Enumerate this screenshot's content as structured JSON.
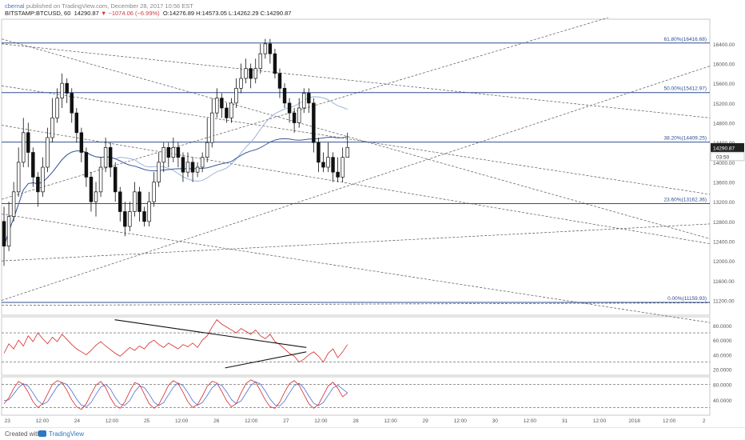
{
  "header": {
    "author": "cbernal",
    "published": "published on TradingView.com, December 28, 2017 10:56 EST",
    "symbol": "BITSTAMP:BTCUSD, 60",
    "price": "14290.87",
    "change": "▼ −1074.06 (−6.99%)",
    "ohlc": "O:14276.89 H:14573.05 L:14262.29 C:14290.87"
  },
  "footer": {
    "created": "Created with",
    "brand": "TradingView"
  },
  "chart_data": {
    "type": "candlestick",
    "y_axis_price": {
      "ticks": [
        11200,
        11600,
        12000,
        12400,
        12800,
        13200,
        13600,
        14000,
        14400,
        14800,
        15200,
        15600,
        16000,
        16400
      ],
      "labels": [
        "11200.00",
        "11600.00",
        "12000.00",
        "12400.00",
        "12800.00",
        "13200.00",
        "13600.00",
        "14000.00",
        "14400.00",
        "14800.00",
        "15200.00",
        "15600.00",
        "16000.00",
        "16400.00"
      ],
      "range": [
        10900,
        16900
      ]
    },
    "last_price_label": "14290.87",
    "countdown_label": "03:50",
    "x_axis": {
      "labels": [
        "23",
        "12:00",
        "24",
        "12:00",
        "25",
        "12:00",
        "26",
        "12:00",
        "27",
        "12:00",
        "28",
        "12:00",
        "29",
        "12:00",
        "30",
        "12:00",
        "31",
        "12:00",
        "2018",
        "12:00",
        "2"
      ],
      "range_hours": [
        -2,
        242
      ]
    },
    "fibonacci": [
      {
        "level": "61.80%",
        "price": 16416.68,
        "label": "61.80%(16416.68)"
      },
      {
        "level": "50.00%",
        "price": 15412.97,
        "label": "50.00%(15412.97)"
      },
      {
        "level": "38.20%",
        "price": 14409.25,
        "label": "38.20%(14409.25)"
      },
      {
        "level": "23.60%",
        "price": 13162.36,
        "label": "23.60%(13162.36)"
      },
      {
        "level": "0.00%",
        "price": 11159.93,
        "label": "0.00%(11159.93)"
      }
    ],
    "candles": [
      [
        12800,
        12300,
        13100,
        11900
      ],
      [
        12300,
        12900,
        13200,
        12200
      ],
      [
        12900,
        13400,
        13600,
        12800
      ],
      [
        13400,
        14000,
        14300,
        13300
      ],
      [
        14000,
        14600,
        14900,
        13900
      ],
      [
        14600,
        14200,
        14800,
        13900
      ],
      [
        14200,
        13700,
        14300,
        13500
      ],
      [
        13700,
        13400,
        13800,
        13100
      ],
      [
        13400,
        13900,
        14100,
        13300
      ],
      [
        13900,
        14500,
        14700,
        13800
      ],
      [
        14500,
        14900,
        15300,
        14400
      ],
      [
        14900,
        15300,
        15500,
        14800
      ],
      [
        15300,
        15600,
        15800,
        15100
      ],
      [
        15600,
        15400,
        15700,
        15200
      ],
      [
        15400,
        15000,
        15500,
        14800
      ],
      [
        15000,
        14600,
        15100,
        14400
      ],
      [
        14600,
        14200,
        14700,
        14000
      ],
      [
        14200,
        13700,
        14300,
        13500
      ],
      [
        13700,
        13200,
        13800,
        13000
      ],
      [
        13200,
        13400,
        13600,
        12900
      ],
      [
        13400,
        13900,
        14100,
        13300
      ],
      [
        13900,
        14300,
        14500,
        13800
      ],
      [
        14300,
        13900,
        14400,
        13700
      ],
      [
        13900,
        13400,
        14000,
        13200
      ],
      [
        13400,
        13000,
        13500,
        12800
      ],
      [
        13000,
        12700,
        13200,
        12500
      ],
      [
        12700,
        13000,
        13200,
        12600
      ],
      [
        13000,
        13400,
        13600,
        12900
      ],
      [
        13400,
        13000,
        13500,
        12800
      ],
      [
        13000,
        12800,
        13100,
        12700
      ],
      [
        12800,
        13200,
        13400,
        12700
      ],
      [
        13200,
        13600,
        13800,
        13100
      ],
      [
        13600,
        14000,
        14200,
        13500
      ],
      [
        14000,
        14300,
        14400,
        13800
      ],
      [
        14300,
        14100,
        14400,
        13900
      ],
      [
        14100,
        14300,
        14500,
        14000
      ],
      [
        14300,
        14100,
        14400,
        13900
      ],
      [
        14100,
        13800,
        14200,
        13600
      ],
      [
        13800,
        14000,
        14200,
        13700
      ],
      [
        14000,
        13800,
        14100,
        13600
      ],
      [
        13800,
        13900,
        14000,
        13700
      ],
      [
        13900,
        14100,
        14200,
        13800
      ],
      [
        14100,
        14400,
        14900,
        14000
      ],
      [
        14400,
        15000,
        15300,
        14300
      ],
      [
        15000,
        15300,
        15500,
        14900
      ],
      [
        15300,
        15100,
        15400,
        14900
      ],
      [
        15100,
        14900,
        15200,
        14800
      ],
      [
        14900,
        15200,
        15300,
        14800
      ],
      [
        15200,
        15500,
        15700,
        15100
      ],
      [
        15500,
        15700,
        16000,
        15400
      ],
      [
        15700,
        15900,
        16100,
        15600
      ],
      [
        15900,
        15700,
        16000,
        15500
      ],
      [
        15700,
        15900,
        16100,
        15600
      ],
      [
        15900,
        16200,
        16400,
        15800
      ],
      [
        16200,
        16400,
        16500,
        16100
      ],
      [
        16400,
        16200,
        16500,
        16000
      ],
      [
        16200,
        15800,
        16300,
        15700
      ],
      [
        15800,
        15500,
        15900,
        15300
      ],
      [
        15500,
        15200,
        15600,
        15100
      ],
      [
        15200,
        15000,
        15300,
        14800
      ],
      [
        15000,
        14800,
        15100,
        14600
      ],
      [
        14800,
        15100,
        15300,
        14700
      ],
      [
        15100,
        15400,
        15500,
        15000
      ],
      [
        15400,
        15200,
        15500,
        15000
      ],
      [
        15200,
        14400,
        15300,
        14200
      ],
      [
        14400,
        14000,
        14500,
        13800
      ],
      [
        14000,
        13900,
        14200,
        13800
      ],
      [
        13900,
        14100,
        14400,
        13800
      ],
      [
        14100,
        13800,
        14200,
        13600
      ],
      [
        13800,
        13700,
        14100,
        13600
      ],
      [
        13700,
        14100,
        14300,
        13600
      ],
      [
        14100,
        14300,
        14600,
        14100
      ]
    ],
    "rsi": {
      "ticks": [
        "80.0000",
        "60.0000",
        "40.0000",
        "20.0000"
      ],
      "tick_values": [
        80,
        60,
        40,
        20
      ],
      "range": [
        12,
        92
      ],
      "levels": [
        70,
        30
      ],
      "values": [
        42,
        55,
        48,
        60,
        52,
        66,
        58,
        70,
        62,
        55,
        64,
        58,
        68,
        61,
        54,
        48,
        44,
        40,
        46,
        53,
        58,
        52,
        47,
        42,
        38,
        44,
        50,
        46,
        52,
        48,
        56,
        60,
        54,
        50,
        56,
        52,
        48,
        54,
        51,
        56,
        50,
        60,
        66,
        78,
        88,
        82,
        78,
        74,
        70,
        76,
        72,
        68,
        74,
        66,
        62,
        68,
        58,
        54,
        48,
        42,
        38,
        30,
        34,
        40,
        44,
        38,
        30,
        42,
        48,
        36,
        44,
        54
      ]
    },
    "stoch": {
      "ticks": [
        "80.0000",
        "40.0000"
      ],
      "tick_values": [
        80,
        40
      ],
      "range": [
        0,
        100
      ],
      "levels": [
        80,
        20
      ],
      "k": [
        30,
        45,
        70,
        88,
        80,
        60,
        35,
        20,
        30,
        55,
        80,
        90,
        85,
        65,
        40,
        22,
        15,
        30,
        55,
        78,
        88,
        72,
        45,
        25,
        18,
        35,
        62,
        85,
        80,
        55,
        30,
        18,
        28,
        52,
        78,
        90,
        82,
        60,
        35,
        20,
        28,
        50,
        75,
        88,
        84,
        62,
        38,
        22,
        30,
        58,
        82,
        92,
        86,
        64,
        40,
        22,
        18,
        34,
        60,
        82,
        90,
        78,
        54,
        30,
        18,
        28,
        52,
        76,
        86,
        70,
        48,
        58
      ],
      "d": [
        38,
        40,
        55,
        72,
        82,
        76,
        58,
        38,
        28,
        35,
        55,
        75,
        85,
        80,
        63,
        42,
        26,
        22,
        33,
        54,
        73,
        80,
        68,
        46,
        29,
        26,
        38,
        61,
        76,
        72,
        55,
        34,
        25,
        33,
        53,
        73,
        84,
        77,
        59,
        38,
        26,
        33,
        51,
        71,
        82,
        78,
        61,
        41,
        30,
        37,
        57,
        77,
        87,
        81,
        63,
        42,
        27,
        24,
        37,
        58,
        77,
        83,
        71,
        50,
        31,
        25,
        33,
        52,
        71,
        78,
        68,
        58
      ]
    }
  }
}
